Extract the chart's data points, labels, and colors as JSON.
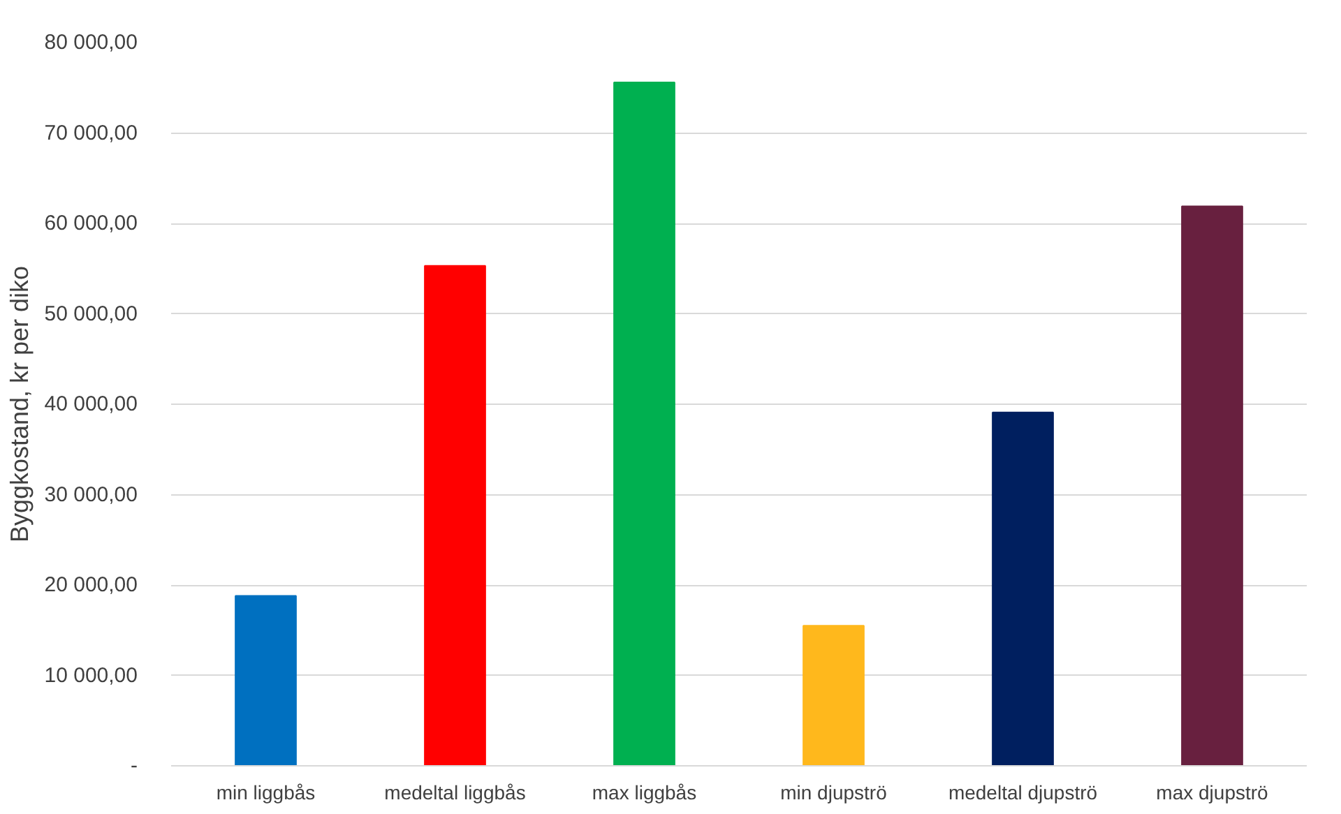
{
  "chart_data": {
    "type": "bar",
    "ylabel": "Byggkostand, kr per diko",
    "categories": [
      "min liggbås",
      "medeltal liggbås",
      "max liggbås",
      "min djupströ",
      "medeltal djupströ",
      "max djupströ"
    ],
    "values": [
      18800,
      55300,
      75600,
      15500,
      39100,
      61900
    ],
    "colors": [
      "#0070c0",
      "#ff0000",
      "#00b050",
      "#ffb81c",
      "#001f5f",
      "#68203f"
    ],
    "ylim": [
      0,
      80000
    ],
    "yticks": [
      {
        "value": 0,
        "label": "-"
      },
      {
        "value": 10000,
        "label": "10 000,00"
      },
      {
        "value": 20000,
        "label": "20 000,00"
      },
      {
        "value": 30000,
        "label": "30 000,00"
      },
      {
        "value": 40000,
        "label": "40 000,00"
      },
      {
        "value": 50000,
        "label": "50 000,00"
      },
      {
        "value": 60000,
        "label": "60 000,00"
      },
      {
        "value": 70000,
        "label": "70 000,00"
      },
      {
        "value": 80000,
        "label": "80 000,00"
      }
    ],
    "grid": "y"
  }
}
